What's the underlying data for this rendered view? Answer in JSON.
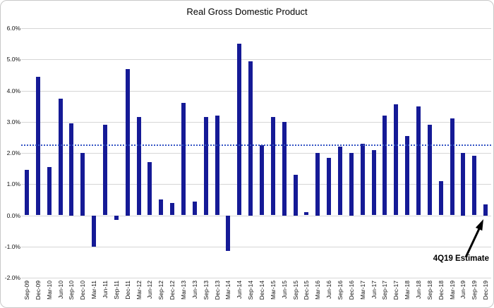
{
  "chart_data": {
    "type": "bar",
    "title": "Real Gross Domestic Product",
    "xlabel": "",
    "ylabel": "",
    "ylim": [
      -2,
      6
    ],
    "grid": true,
    "legend": false,
    "categories": [
      "Sep-09",
      "Dec-09",
      "Mar-10",
      "Jun-10",
      "Sep-10",
      "Dec-10",
      "Mar-11",
      "Jun-11",
      "Sep-11",
      "Dec-11",
      "Mar-12",
      "Jun-12",
      "Sep-12",
      "Dec-12",
      "Mar-13",
      "Jun-13",
      "Sep-13",
      "Dec-13",
      "Mar-14",
      "Jun-14",
      "Sep-14",
      "Dec-14",
      "Mar-15",
      "Jun-15",
      "Sep-15",
      "Dec-15",
      "Mar-16",
      "Jun-16",
      "Sep-16",
      "Dec-16",
      "Mar-17",
      "Jun-17",
      "Sep-17",
      "Dec-17",
      "Mar-18",
      "Jun-18",
      "Sep-18",
      "Dec-18",
      "Mar-19",
      "Jun-19",
      "Sep-19",
      "Dec-19"
    ],
    "values": [
      1.45,
      4.45,
      1.55,
      3.75,
      2.95,
      2.0,
      -1.0,
      2.9,
      -0.15,
      4.7,
      3.15,
      1.7,
      0.5,
      0.4,
      3.6,
      0.45,
      3.15,
      3.2,
      -1.15,
      5.5,
      4.95,
      2.25,
      3.15,
      3.0,
      1.3,
      0.1,
      2.0,
      1.85,
      2.2,
      2.0,
      2.3,
      2.1,
      3.2,
      3.55,
      2.55,
      3.5,
      2.9,
      1.1,
      3.1,
      2.0,
      1.9,
      0.35
    ],
    "yticks": [
      {
        "value": 6,
        "label": "6.0%"
      },
      {
        "value": 5,
        "label": "5.0%"
      },
      {
        "value": 4,
        "label": "4.0%"
      },
      {
        "value": 3,
        "label": "3.0%"
      },
      {
        "value": 2,
        "label": "2.0%"
      },
      {
        "value": 1,
        "label": "1.0%"
      },
      {
        "value": 0,
        "label": "0.0%"
      },
      {
        "value": -1,
        "label": "-1.0%"
      },
      {
        "value": -2,
        "label": "-2.0%"
      }
    ],
    "average_line": {
      "value": 2.25,
      "style": "dotted"
    },
    "annotation": {
      "text": "4Q19 Estimate",
      "points_to": "Dec-19"
    }
  },
  "colors": {
    "bar": "#151a96",
    "average_line": "#3353c4",
    "grid": "#d6d6d6",
    "text": "#000000",
    "arrow": "#000000",
    "frame": "#c8c8c8"
  }
}
